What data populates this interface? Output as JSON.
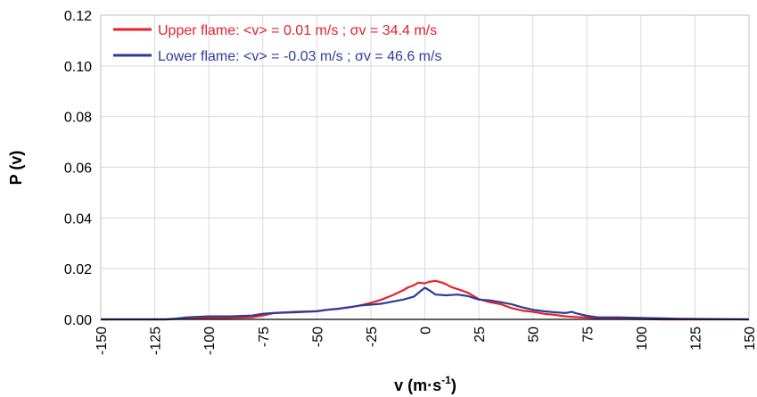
{
  "chart_data": {
    "type": "line",
    "xlabel": "v (m·s",
    "xlabel_sup": "-1",
    "xlabel_close": ")",
    "ylabel": "P (v)",
    "xlim": [
      -150,
      150
    ],
    "ylim": [
      0,
      0.12
    ],
    "x_ticks": [
      "-150",
      "-125",
      "-100",
      "-75",
      "-50",
      "-25",
      "0",
      "25",
      "50",
      "75",
      "100",
      "125",
      "150"
    ],
    "y_ticks": [
      "0.00",
      "0.02",
      "0.04",
      "0.06",
      "0.08",
      "0.10",
      "0.12"
    ],
    "grid": true,
    "legend_position": "top-left",
    "series": [
      {
        "name": "Upper flame: <v> = 0.01 m/s ; σv = 34.4 m/s",
        "color": "#e8202a",
        "x": [
          -150,
          -120,
          -110,
          -100,
          -90,
          -80,
          -75,
          -70,
          -60,
          -50,
          -45,
          -40,
          -35,
          -30,
          -25,
          -20,
          -15,
          -10,
          -8,
          -5,
          -3,
          0,
          2,
          5,
          8,
          10,
          12,
          15,
          20,
          25,
          30,
          35,
          40,
          45,
          50,
          55,
          60,
          65,
          70,
          75,
          80,
          85,
          90,
          100,
          110,
          120,
          150
        ],
        "y": [
          0.0,
          0.0,
          0.0003,
          0.0005,
          0.0006,
          0.0008,
          0.0015,
          0.0025,
          0.003,
          0.0032,
          0.0038,
          0.0042,
          0.0048,
          0.0055,
          0.0065,
          0.0078,
          0.0095,
          0.0115,
          0.0125,
          0.0135,
          0.0145,
          0.0142,
          0.0148,
          0.0152,
          0.0145,
          0.0138,
          0.0128,
          0.012,
          0.0105,
          0.008,
          0.0068,
          0.006,
          0.0045,
          0.0035,
          0.003,
          0.0022,
          0.0018,
          0.0012,
          0.0009,
          0.0007,
          0.0005,
          0.0003,
          0.0002,
          0.0001,
          0.0,
          0.0,
          0.0
        ]
      },
      {
        "name": "Lower flame: <v> = -0.03 m/s ; σv = 46.6 m/s",
        "color": "#2c3c99",
        "x": [
          -150,
          -130,
          -120,
          -115,
          -110,
          -100,
          -90,
          -80,
          -75,
          -70,
          -60,
          -50,
          -45,
          -40,
          -35,
          -30,
          -25,
          -20,
          -15,
          -10,
          -5,
          -2,
          0,
          2,
          5,
          10,
          15,
          20,
          25,
          30,
          35,
          40,
          45,
          50,
          55,
          60,
          65,
          68,
          70,
          75,
          80,
          90,
          100,
          110,
          120,
          150
        ],
        "y": [
          0.0,
          0.0,
          0.0,
          0.0003,
          0.0008,
          0.0012,
          0.0012,
          0.0015,
          0.0022,
          0.0025,
          0.0028,
          0.0032,
          0.0038,
          0.0042,
          0.0048,
          0.0055,
          0.0058,
          0.0062,
          0.007,
          0.0078,
          0.009,
          0.0112,
          0.0125,
          0.0115,
          0.0098,
          0.0095,
          0.0098,
          0.0092,
          0.0078,
          0.0075,
          0.0068,
          0.006,
          0.0048,
          0.0038,
          0.0032,
          0.0028,
          0.0025,
          0.003,
          0.0024,
          0.0014,
          0.0008,
          0.0008,
          0.0006,
          0.0004,
          0.0002,
          0.0
        ]
      }
    ]
  }
}
